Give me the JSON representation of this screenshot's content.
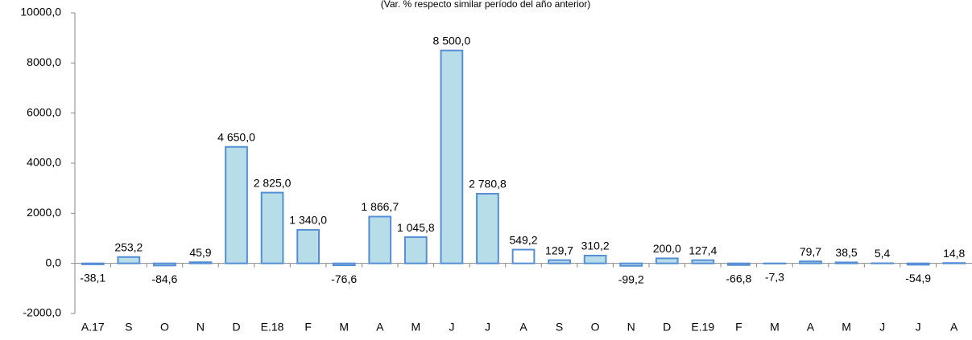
{
  "chart_data": {
    "type": "bar",
    "subtitle": "(Var. % respecto similar período del año anterior)",
    "categories": [
      "A.17",
      "S",
      "O",
      "N",
      "D",
      "E.18",
      "F",
      "M",
      "A",
      "M",
      "J",
      "J",
      "A",
      "S",
      "O",
      "N",
      "D",
      "E.19",
      "F",
      "M",
      "A",
      "M",
      "J",
      "J",
      "A"
    ],
    "values": [
      -38.1,
      253.2,
      -84.6,
      45.9,
      4650.0,
      2825.0,
      1340.0,
      -76.6,
      1866.7,
      1045.8,
      8500.0,
      2780.8,
      549.2,
      129.7,
      310.2,
      -99.2,
      200.0,
      127.4,
      -66.8,
      -7.3,
      79.7,
      38.5,
      5.4,
      -54.9,
      14.8
    ],
    "value_labels": [
      "-38,1",
      "253,2",
      "-84,6",
      "45,9",
      "4 650,0",
      "2 825,0",
      "1 340,0",
      "-76,6",
      "1 866,7",
      "1 045,8",
      "8 500,0",
      "2 780,8",
      "549,2",
      "129,7",
      "310,2",
      "-99,2",
      "200,0",
      "127,4",
      "-66,8",
      "-7,3",
      "79,7",
      "38,5",
      "5,4",
      "-54,9",
      "14,8"
    ],
    "colors": [
      "#b7dde8",
      "#b7dde8",
      "#b7dde8",
      "#b7dde8",
      "#b7dde8",
      "#b7dde8",
      "#b7dde8",
      "#b7dde8",
      "#b7dde8",
      "#b7dde8",
      "#b7dde8",
      "#b7dde8",
      "#ffffff",
      "#b7dde8",
      "#b7dde8",
      "#b7dde8",
      "#b7dde8",
      "#b7dde8",
      "#b7dde8",
      "#b7dde8",
      "#b7dde8",
      "#b7dde8",
      "#b7dde8",
      "#b7dde8",
      "#b7dde8"
    ],
    "edge_color": "#558ed5",
    "ylim": [
      -2000,
      10000
    ],
    "yticks": [
      {
        "value": -2000,
        "label": "-2000,0"
      },
      {
        "value": 0,
        "label": "0,0"
      },
      {
        "value": 2000,
        "label": "2000,0"
      },
      {
        "value": 4000,
        "label": "4000,0"
      },
      {
        "value": 6000,
        "label": "6000,0"
      },
      {
        "value": 8000,
        "label": "8000,0"
      },
      {
        "value": 10000,
        "label": "10000,0"
      }
    ]
  }
}
